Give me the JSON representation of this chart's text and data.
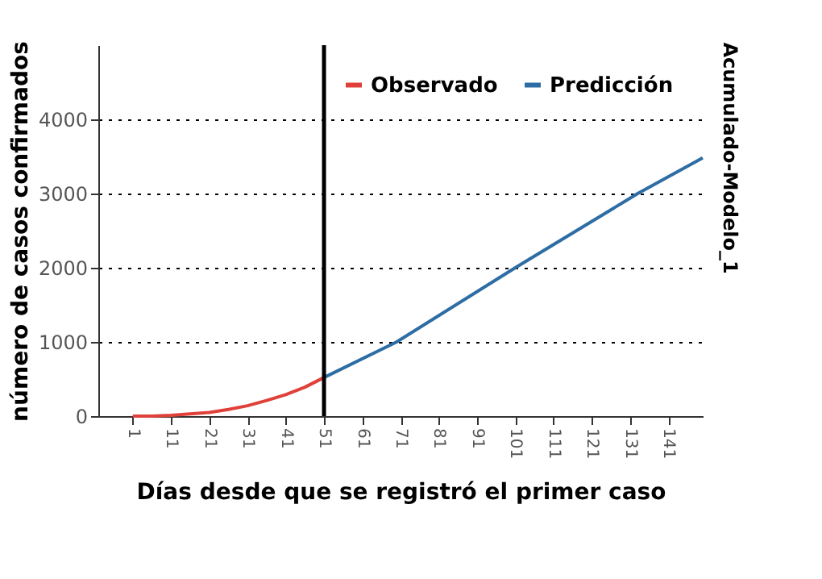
{
  "chart_data": {
    "type": "line",
    "xlabel": "Días desde que se registró el primer caso",
    "ylabel": "número de casos confirmados",
    "y2label": "Acumulado-Modelo_1",
    "series": [
      {
        "name": "Observado",
        "color": "#e0403a",
        "x": [
          1,
          6,
          11,
          16,
          21,
          26,
          31,
          36,
          41,
          46,
          51
        ],
        "values": [
          0,
          0,
          10,
          30,
          50,
          90,
          140,
          210,
          290,
          390,
          520
        ]
      },
      {
        "name": "Predicción",
        "color": "#2e6da4",
        "x": [
          51,
          70,
          101,
          133,
          150
        ],
        "values": [
          520,
          1000,
          2000,
          3000,
          3480
        ]
      }
    ],
    "xlim": [
      -8,
      150
    ],
    "xticks": [
      1,
      11,
      21,
      31,
      41,
      51,
      61,
      71,
      81,
      91,
      101,
      111,
      121,
      131,
      141
    ],
    "ylim": [
      0,
      5000
    ],
    "yticks": [
      0,
      1000,
      2000,
      3000,
      4000
    ],
    "ref_lines": [
      {
        "axis": "x",
        "value": 51,
        "color": "#000000"
      }
    ],
    "grid": "y",
    "legend": "top right",
    "line_style": "solid",
    "marker": "none"
  }
}
